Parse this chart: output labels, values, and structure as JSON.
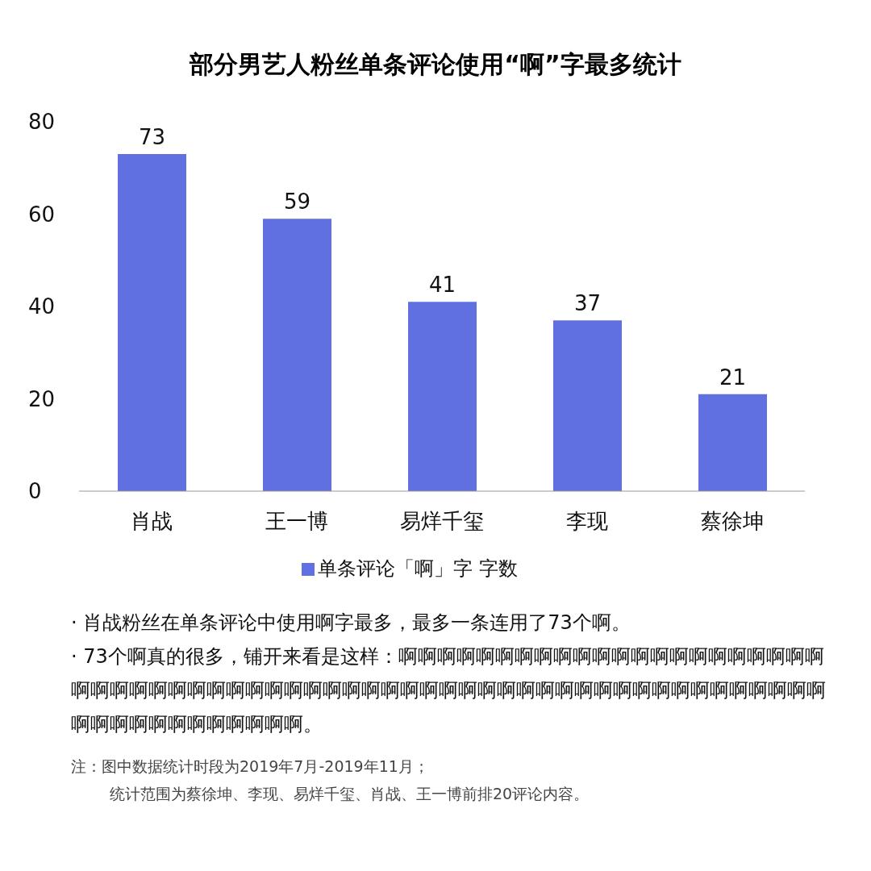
{
  "chart_data": {
    "type": "bar",
    "title": "部分男艺人粉丝单条评论使用“啊”字最多统计",
    "categories": [
      "肖战",
      "王一博",
      "易烊千玺",
      "李现",
      "蔡徐坤"
    ],
    "series": [
      {
        "name": "单条评论「啊」字 字数",
        "color": "#6170e0",
        "values": [
          73,
          59,
          41,
          37,
          21
        ]
      }
    ],
    "ylim": [
      0,
      80
    ],
    "yticks": [
      0,
      20,
      40,
      60,
      80
    ],
    "grid": false,
    "legend": "bottom",
    "data_labels": true,
    "annotations": [
      "· 肖战粉丝在单条评论中使用啊字最多，最多一条连用了73个啊。",
      "· 73个啊真的很多，铺开来看是这样：啊啊啊啊啊啊啊啊啊啊啊啊啊啊啊啊啊啊啊啊啊啊啊啊啊啊啊啊啊啊啊啊啊啊啊啊啊啊啊啊啊啊啊啊啊啊啊啊啊啊啊啊啊啊啊啊啊啊啊啊啊啊啊啊啊啊啊啊啊啊啊啊啊。",
      "注：图中数据统计时段为2019年7月-2019年11月；",
      "统计范围为蔡徐坤、李现、易烊千玺、肖战、王一博前排20评论内容。"
    ]
  }
}
